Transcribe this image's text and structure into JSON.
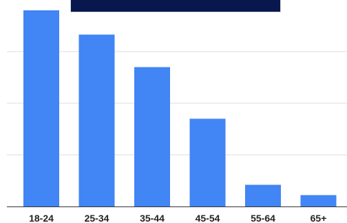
{
  "chart_data": {
    "type": "bar",
    "title": "",
    "categories": [
      "18-24",
      "25-34",
      "35-44",
      "45-54",
      "55-64",
      "65+"
    ],
    "values": [
      38,
      33.3,
      27,
      17,
      4.2,
      2.2
    ],
    "ylim": [
      0,
      40
    ],
    "grid": true,
    "xlabel": "",
    "ylabel": "",
    "colors": {
      "bar": "#4285f4",
      "title_background": "#08184f",
      "gridline": "#dddddd",
      "axis": "#333333"
    }
  }
}
